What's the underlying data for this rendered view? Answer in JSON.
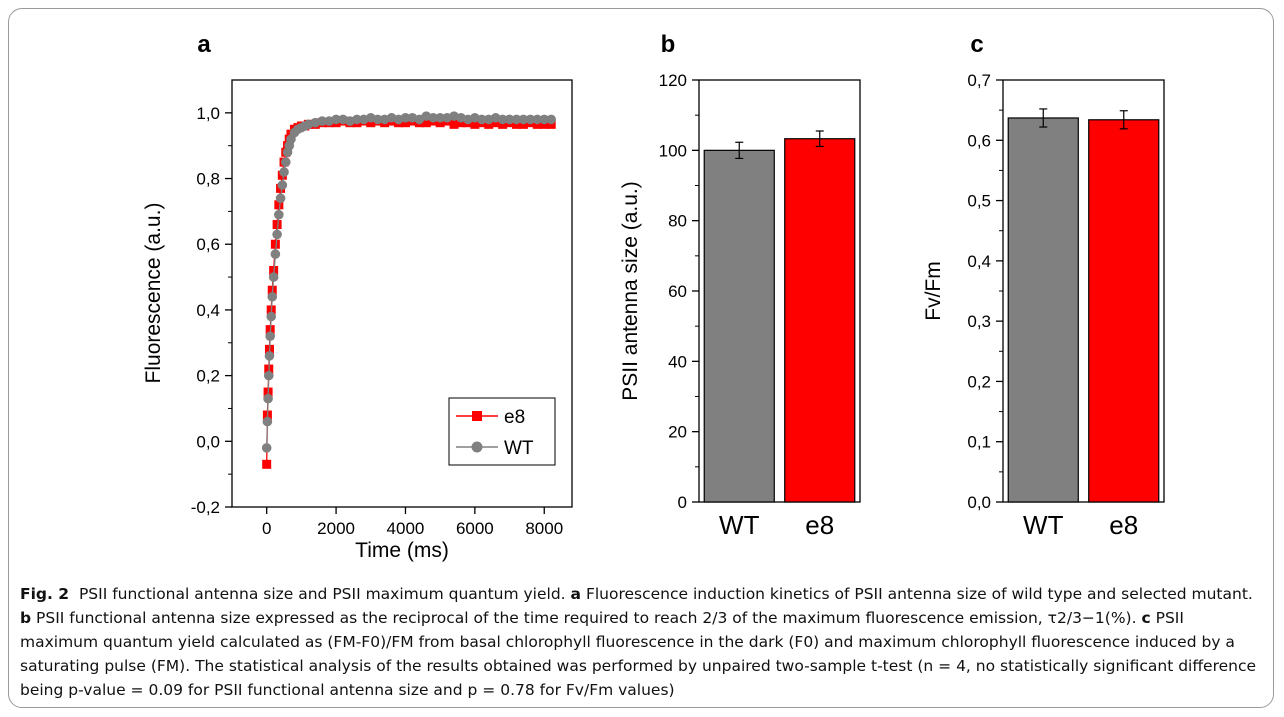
{
  "panels": {
    "a": "a",
    "b": "b",
    "c": "c"
  },
  "chart_data": [
    {
      "type": "scatter",
      "panel": "a",
      "xlabel": "Time (ms)",
      "ylabel": "Fluorescence (a.u.)",
      "xlim": [
        -1000,
        8800
      ],
      "ylim": [
        -0.2,
        1.1
      ],
      "xticks": [
        0,
        2000,
        4000,
        6000,
        8000
      ],
      "yticks": [
        -0.2,
        0.0,
        0.2,
        0.4,
        0.6,
        0.8,
        1.0
      ],
      "ytick_labels": [
        "-0,2",
        "0,0",
        "0,2",
        "0,4",
        "0,6",
        "0,8",
        "1,0"
      ],
      "legend_position": "bottom-right",
      "series": [
        {
          "name": "e8",
          "color": "#ff0000",
          "marker": "square",
          "x": [
            0,
            20,
            40,
            60,
            80,
            100,
            130,
            160,
            200,
            250,
            300,
            350,
            400,
            450,
            500,
            550,
            600,
            650,
            700,
            800,
            900,
            1000,
            1100,
            1200,
            1400,
            1600,
            1800,
            2000,
            2200,
            2400,
            2600,
            2800,
            3000,
            3200,
            3400,
            3600,
            3800,
            4000,
            4200,
            4400,
            4600,
            4800,
            5000,
            5200,
            5400,
            5600,
            5800,
            6000,
            6200,
            6400,
            6600,
            6800,
            7000,
            7200,
            7400,
            7600,
            7800,
            8000,
            8200
          ],
          "y": [
            -0.07,
            0.08,
            0.15,
            0.22,
            0.28,
            0.34,
            0.4,
            0.46,
            0.52,
            0.6,
            0.66,
            0.72,
            0.77,
            0.81,
            0.85,
            0.88,
            0.9,
            0.92,
            0.935,
            0.95,
            0.955,
            0.96,
            0.96,
            0.965,
            0.965,
            0.97,
            0.97,
            0.97,
            0.975,
            0.97,
            0.97,
            0.975,
            0.97,
            0.975,
            0.97,
            0.975,
            0.97,
            0.97,
            0.975,
            0.97,
            0.97,
            0.975,
            0.97,
            0.975,
            0.965,
            0.97,
            0.97,
            0.965,
            0.97,
            0.965,
            0.97,
            0.965,
            0.97,
            0.965,
            0.965,
            0.97,
            0.965,
            0.965,
            0.965
          ]
        },
        {
          "name": "WT",
          "color": "#808080",
          "marker": "circle",
          "x": [
            0,
            20,
            40,
            60,
            80,
            100,
            130,
            160,
            200,
            250,
            300,
            350,
            400,
            450,
            500,
            550,
            600,
            650,
            700,
            800,
            900,
            1000,
            1100,
            1200,
            1400,
            1600,
            1800,
            2000,
            2200,
            2400,
            2600,
            2800,
            3000,
            3200,
            3400,
            3600,
            3800,
            4000,
            4200,
            4400,
            4600,
            4800,
            5000,
            5200,
            5400,
            5600,
            5800,
            6000,
            6200,
            6400,
            6600,
            6800,
            7000,
            7200,
            7400,
            7600,
            7800,
            8000,
            8200
          ],
          "y": [
            -0.02,
            0.06,
            0.13,
            0.2,
            0.26,
            0.32,
            0.38,
            0.44,
            0.5,
            0.57,
            0.63,
            0.69,
            0.74,
            0.78,
            0.82,
            0.85,
            0.88,
            0.9,
            0.92,
            0.94,
            0.95,
            0.955,
            0.96,
            0.965,
            0.97,
            0.975,
            0.975,
            0.98,
            0.98,
            0.975,
            0.98,
            0.98,
            0.985,
            0.98,
            0.98,
            0.985,
            0.98,
            0.985,
            0.985,
            0.98,
            0.99,
            0.985,
            0.985,
            0.985,
            0.99,
            0.985,
            0.98,
            0.985,
            0.98,
            0.98,
            0.985,
            0.98,
            0.98,
            0.98,
            0.98,
            0.98,
            0.98,
            0.98,
            0.98
          ]
        }
      ]
    },
    {
      "type": "bar",
      "panel": "b",
      "ylabel": "PSII antenna size (a.u.)",
      "categories": [
        "WT",
        "e8"
      ],
      "values": [
        100,
        103.3
      ],
      "errors": [
        2.3,
        2.2
      ],
      "colors": [
        "#808080",
        "#ff0000"
      ],
      "ylim": [
        0,
        120
      ],
      "yticks": [
        0,
        20,
        40,
        60,
        80,
        100,
        120
      ],
      "ytick_labels": [
        "0",
        "20",
        "40",
        "60",
        "80",
        "100",
        "120"
      ]
    },
    {
      "type": "bar",
      "panel": "c",
      "ylabel": "Fv/Fm",
      "categories": [
        "WT",
        "e8"
      ],
      "values": [
        0.637,
        0.634
      ],
      "errors": [
        0.015,
        0.015
      ],
      "colors": [
        "#808080",
        "#ff0000"
      ],
      "ylim": [
        0,
        0.7
      ],
      "yticks": [
        0,
        0.1,
        0.2,
        0.3,
        0.4,
        0.5,
        0.6,
        0.7
      ],
      "ytick_labels": [
        "0,0",
        "0,1",
        "0,2",
        "0,3",
        "0,4",
        "0,5",
        "0,6",
        "0,7"
      ]
    }
  ],
  "caption": {
    "label": "Fig. 2",
    "title": "PSII functional antenna size and PSII maximum quantum yield.",
    "a_tag": "a",
    "a_text": "Fluorescence induction kinetics of PSII antenna size of wild type and selected mutant.",
    "b_tag": "b",
    "b_text": "PSII functional antenna size expressed as the reciprocal of the time required to reach 2/3 of the maximum fluorescence emission, τ2/3−1(%).",
    "c_tag": "c",
    "c_text": "PSII maximum quantum yield calculated as (FM-F0)/FM from basal chlorophyll fluorescence in the dark (F0) and maximum chlorophyll fluorescence induced by a saturating pulse (FM). The statistical analysis of the results obtained was performed by unpaired two-sample t-test (n = 4, no statistically significant difference being p-value = 0.09 for PSII functional antenna size and p = 0.78 for Fv/Fm values)"
  }
}
